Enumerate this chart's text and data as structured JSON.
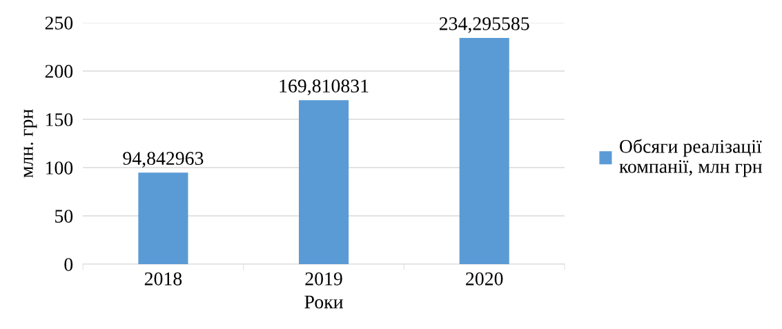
{
  "chart_data": {
    "type": "bar",
    "xlabel": "Роки",
    "ylabel": "млн. грн",
    "categories": [
      "2018",
      "2019",
      "2020"
    ],
    "series": [
      {
        "name": "Обсяги реалізації компанії, млн грн",
        "color": "#5b9bd5",
        "values": [
          94.842963,
          169.810831,
          234.295585
        ],
        "value_labels": [
          "94,842963",
          "169,810831",
          "234,295585"
        ]
      }
    ],
    "ylim": [
      0,
      250
    ],
    "yticks": [
      0,
      50,
      100,
      150,
      200,
      250
    ],
    "grid": "y",
    "legend": "right"
  }
}
